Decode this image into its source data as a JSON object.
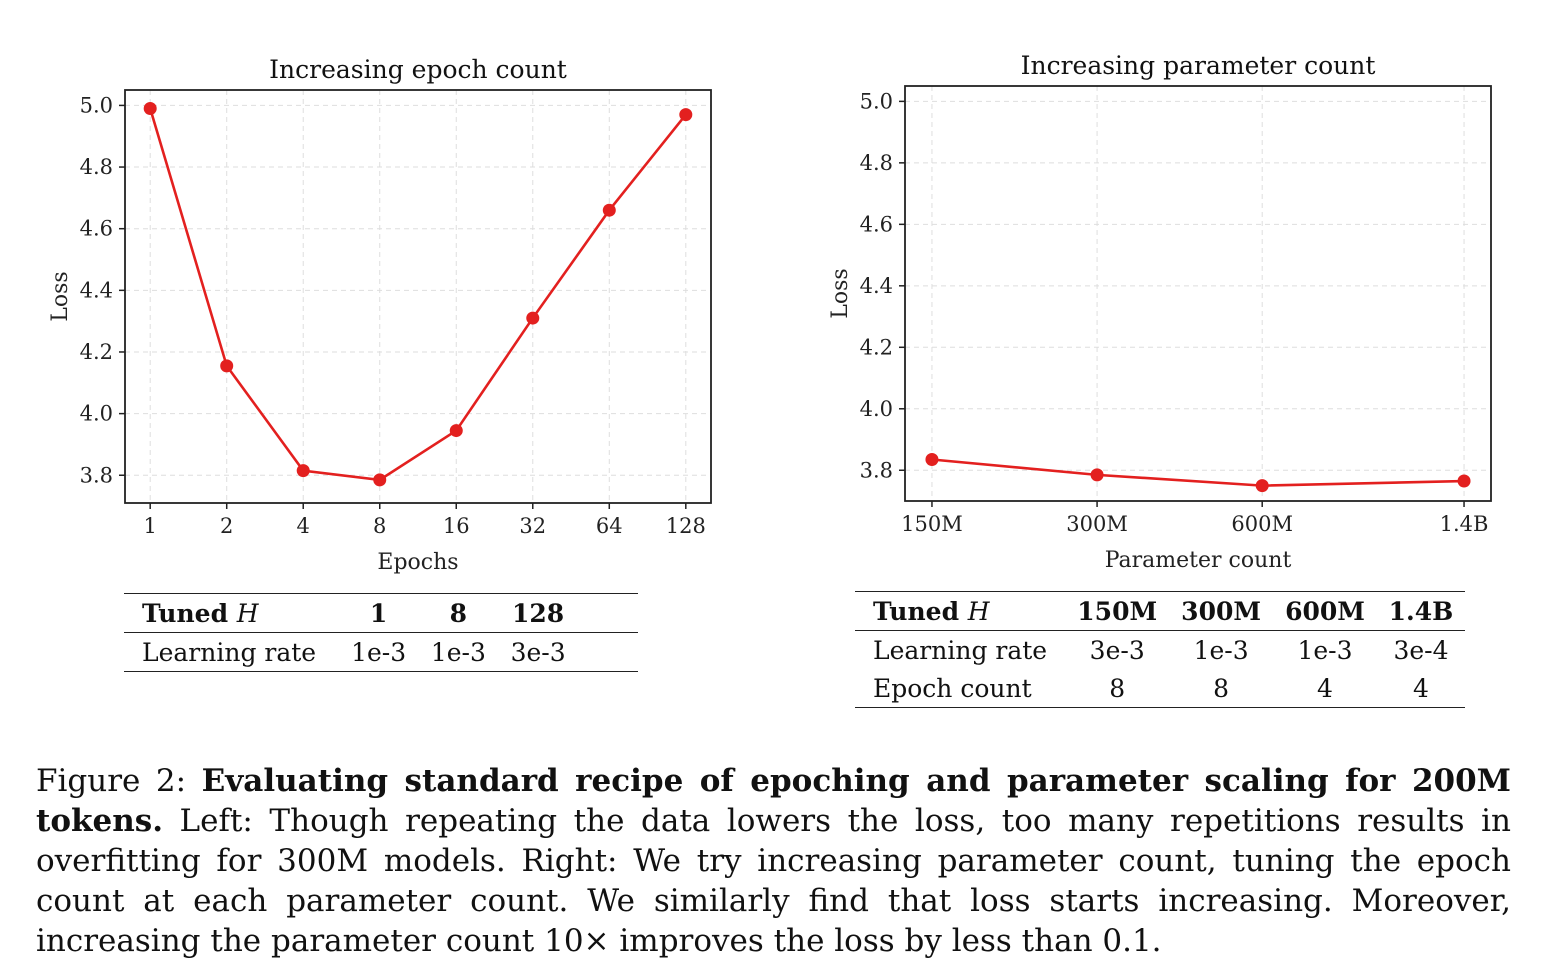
{
  "chart_data": [
    {
      "type": "line",
      "title": "Increasing epoch count",
      "xlabel": "Epochs",
      "ylabel": "Loss",
      "x_scale": "log2",
      "categories": [
        "1",
        "2",
        "4",
        "8",
        "16",
        "32",
        "64",
        "128"
      ],
      "series": [
        {
          "values": [
            4.99,
            4.155,
            3.815,
            3.785,
            3.945,
            4.31,
            4.66,
            4.97
          ]
        }
      ],
      "yticks": [
        "3.8",
        "4.0",
        "4.2",
        "4.4",
        "4.6",
        "4.8",
        "5.0"
      ],
      "ylim": [
        3.71,
        5.05
      ],
      "grid": true,
      "color": "#e3201f"
    },
    {
      "type": "line",
      "title": "Increasing parameter count",
      "xlabel": "Parameter count",
      "ylabel": "Loss",
      "x_scale": "log",
      "categories": [
        "150M",
        "300M",
        "600M",
        "1.4B"
      ],
      "series": [
        {
          "values": [
            3.835,
            3.785,
            3.75,
            3.765
          ]
        }
      ],
      "yticks": [
        "3.8",
        "4.0",
        "4.2",
        "4.4",
        "4.6",
        "4.8",
        "5.0"
      ],
      "ylim": [
        3.7,
        5.05
      ],
      "grid": true,
      "color": "#e3201f"
    }
  ],
  "table_left": {
    "header_label": "Tuned ",
    "header_var": "H",
    "header_values": [
      "1",
      "8",
      "128"
    ],
    "rows": [
      {
        "label": "Learning rate",
        "values": [
          "1e-3",
          "1e-3",
          "3e-3"
        ]
      }
    ]
  },
  "table_right": {
    "header_label": "Tuned ",
    "header_var": "H",
    "header_values": [
      "150M",
      "300M",
      "600M",
      "1.4B"
    ],
    "rows": [
      {
        "label": "Learning rate",
        "values": [
          "3e-3",
          "1e-3",
          "1e-3",
          "3e-4"
        ]
      },
      {
        "label": "Epoch count",
        "values": [
          "8",
          "8",
          "4",
          "4"
        ]
      }
    ]
  },
  "caption": {
    "prefix": "Figure 2: ",
    "bold": "Evaluating standard recipe of epoching and parameter scaling for 200M tokens.",
    "text": " Left: Though repeating the data lowers the loss, too many repetitions results in overfitting for 300M models. Right: We try increasing parameter count, tuning the epoch count at each parameter count. We similarly find that loss starts increasing. Moreover, increasing the parameter count 10× improves the loss by less than 0.1."
  }
}
